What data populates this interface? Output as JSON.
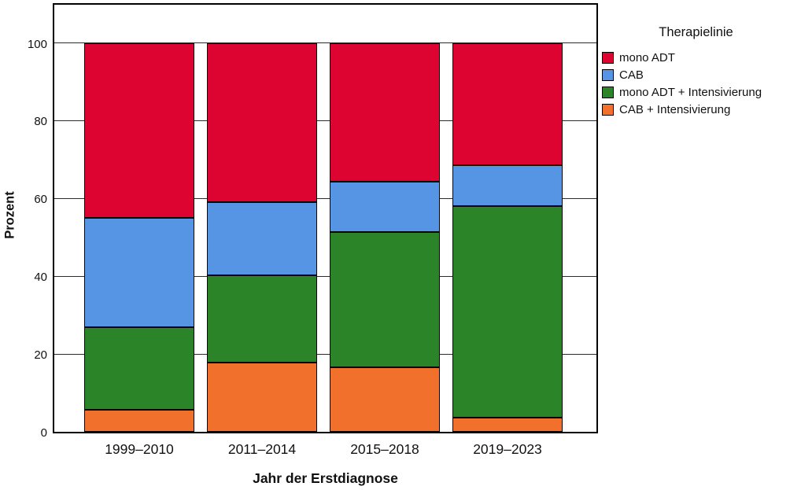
{
  "chart_data": {
    "type": "bar",
    "stacked": true,
    "title": "",
    "categories": [
      "1999–2010",
      "2011–2014",
      "2015–2018",
      "2019–2023"
    ],
    "series": [
      {
        "name": "CAB + Intensivierung",
        "color": "#F1702B",
        "values": [
          5.7,
          17.8,
          16.6,
          3.6
        ]
      },
      {
        "name": "mono ADT + Intensivierung",
        "color": "#2B8528",
        "values": [
          21.3,
          22.5,
          34.7,
          54.5
        ]
      },
      {
        "name": "CAB",
        "color": "#5695E3",
        "values": [
          28.0,
          18.8,
          13.0,
          10.4
        ]
      },
      {
        "name": "mono ADT",
        "color": "#DD0432",
        "values": [
          45.0,
          40.9,
          35.7,
          31.5
        ]
      }
    ],
    "xlabel": "Jahr der Erstdiagnose",
    "ylabel": "Prozent",
    "yticks": [
      0,
      20,
      40,
      60,
      80,
      100
    ],
    "ylim": [
      0,
      110.6
    ],
    "grid": true,
    "legend_position": "right",
    "legend_title": "Therapielinie",
    "legend_order_top_to_bottom": [
      "mono ADT",
      "CAB",
      "mono ADT + Intensivierung",
      "CAB + Intensivierung"
    ]
  },
  "legend": {
    "title": "Therapielinie",
    "items": [
      {
        "label": "mono ADT",
        "color": "#DD0432"
      },
      {
        "label": "CAB",
        "color": "#5695E3"
      },
      {
        "label": "mono ADT + Intensivierung",
        "color": "#2B8528"
      },
      {
        "label": "CAB + Intensivierung",
        "color": "#F1702B"
      }
    ]
  },
  "axes": {
    "x_title": "Jahr der Erstdiagnose",
    "y_title": "Prozent"
  }
}
